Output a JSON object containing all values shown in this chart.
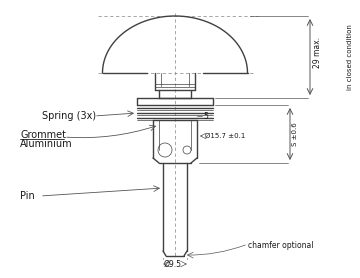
{
  "bg_color": "#ffffff",
  "line_color": "#404040",
  "dim_color": "#555555",
  "text_color": "#1a1a1a",
  "figsize": [
    3.6,
    2.78
  ],
  "dpi": 100,
  "labels": {
    "spring": "Spring (3x)",
    "grommet": "Grommet",
    "aluminium": "Aluminium",
    "pin": "Pin",
    "dim_29": "29 max.",
    "dim_5": "5",
    "dim_diameter_15": "Ø15.7 ±0.1",
    "dim_s": "S ±0.6",
    "dim_diameter_9": "Ø9.5",
    "chamfer": "chamfer optional",
    "closed": "in closed condition"
  }
}
